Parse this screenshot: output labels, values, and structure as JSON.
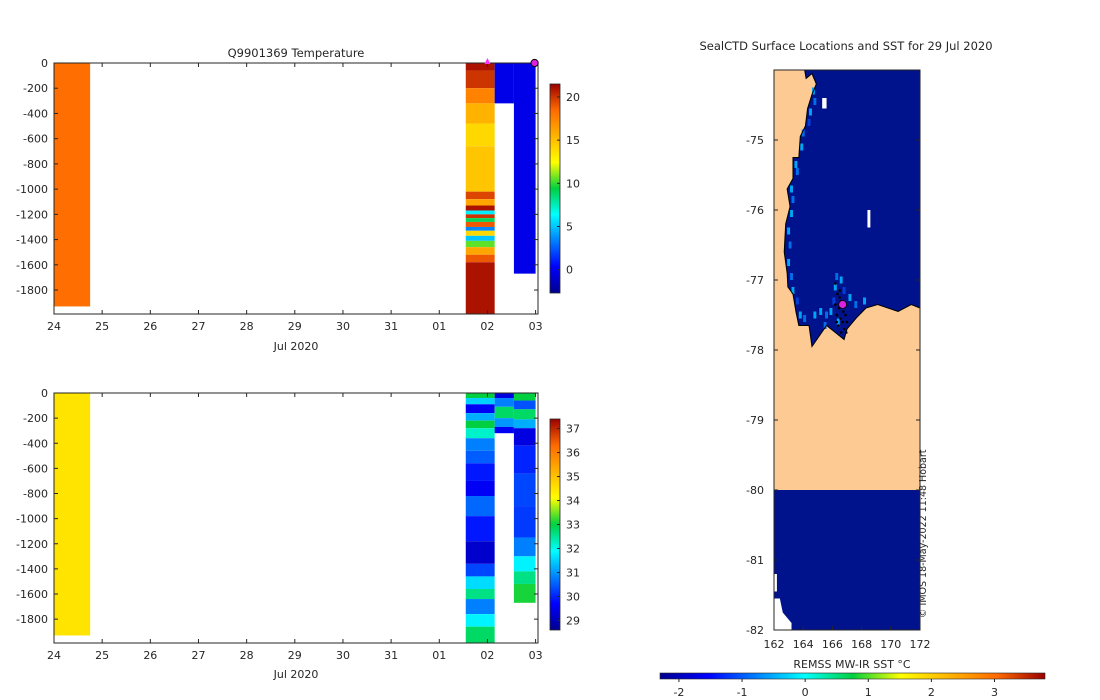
{
  "chart_data": [
    {
      "type": "heatmap",
      "title": "Q9901369  Temperature",
      "xlabel": "Jul 2020",
      "ylabel": "",
      "x_tick_labels": [
        "24",
        "25",
        "26",
        "27",
        "28",
        "29",
        "30",
        "31",
        "01",
        "02",
        "03"
      ],
      "y_tick_labels": [
        "0",
        "-200",
        "-400",
        "-600",
        "-800",
        "-1000",
        "-1200",
        "-1400",
        "-1600",
        "-1800"
      ],
      "xlim": [
        24,
        34.05
      ],
      "ylim": [
        -1990,
        0
      ],
      "colorbar": {
        "ticks": [
          "0",
          "5",
          "10",
          "15",
          "20"
        ],
        "range": [
          -2.7,
          21.5
        ]
      },
      "marker": {
        "x": 34.0,
        "y": 0,
        "shape": "circle",
        "color": "#e020e0"
      },
      "top_marker": {
        "x": 33.0,
        "shape": "triangle",
        "color": "#ff33ff"
      },
      "profiles": [
        {
          "x0": 24.0,
          "x1": 24.75,
          "max_depth": -1930,
          "value_range": "constant",
          "layers": [
            {
              "depth_top": 0,
              "depth_bottom": -1930,
              "value": 18.3
            }
          ]
        },
        {
          "x0": 32.55,
          "x1": 33.15,
          "max_depth": -1990,
          "layers": [
            {
              "depth_top": 0,
              "depth_bottom": -60,
              "value": 21.0
            },
            {
              "depth_top": -60,
              "depth_bottom": -200,
              "value": 20.0
            },
            {
              "depth_top": -200,
              "depth_bottom": -320,
              "value": 17.5
            },
            {
              "depth_top": -320,
              "depth_bottom": -480,
              "value": 15.5
            },
            {
              "depth_top": -480,
              "depth_bottom": -660,
              "value": 14.0
            },
            {
              "depth_top": -660,
              "depth_bottom": -1020,
              "value": 14.8
            },
            {
              "depth_top": -1020,
              "depth_bottom": -1080,
              "value": 19.5
            },
            {
              "depth_top": -1080,
              "depth_bottom": -1130,
              "value": 16.0
            },
            {
              "depth_top": -1130,
              "depth_bottom": -1170,
              "value": 21.0
            },
            {
              "depth_top": -1170,
              "depth_bottom": -1200,
              "value": 6.0
            },
            {
              "depth_top": -1200,
              "depth_bottom": -1230,
              "value": 20.0
            },
            {
              "depth_top": -1230,
              "depth_bottom": -1260,
              "value": 9.0
            },
            {
              "depth_top": -1260,
              "depth_bottom": -1300,
              "value": 19.0
            },
            {
              "depth_top": -1300,
              "depth_bottom": -1330,
              "value": 3.5
            },
            {
              "depth_top": -1330,
              "depth_bottom": -1370,
              "value": 14.0
            },
            {
              "depth_top": -1370,
              "depth_bottom": -1410,
              "value": 5.0
            },
            {
              "depth_top": -1410,
              "depth_bottom": -1460,
              "value": 10.5
            },
            {
              "depth_top": -1460,
              "depth_bottom": -1520,
              "value": 16.0
            },
            {
              "depth_top": -1520,
              "depth_bottom": -1580,
              "value": 19.0
            },
            {
              "depth_top": -1580,
              "depth_bottom": -1990,
              "value": 21.0
            }
          ]
        },
        {
          "x0": 33.15,
          "x1": 33.55,
          "max_depth": -320,
          "layers": [
            {
              "depth_top": 0,
              "depth_bottom": -320,
              "value": -0.3
            }
          ]
        },
        {
          "x0": 33.55,
          "x1": 34.0,
          "max_depth": -1670,
          "layers": [
            {
              "depth_top": 0,
              "depth_bottom": -1670,
              "value": -0.3
            }
          ]
        }
      ]
    },
    {
      "type": "heatmap",
      "title": "",
      "xlabel": "Jul 2020",
      "ylabel": "",
      "x_tick_labels": [
        "24",
        "25",
        "26",
        "27",
        "28",
        "29",
        "30",
        "31",
        "01",
        "02",
        "03"
      ],
      "y_tick_labels": [
        "0",
        "-200",
        "-400",
        "-600",
        "-800",
        "-1000",
        "-1200",
        "-1400",
        "-1600",
        "-1800"
      ],
      "xlim": [
        24,
        34.05
      ],
      "ylim": [
        -1990,
        0
      ],
      "colorbar": {
        "ticks": [
          "29",
          "30",
          "31",
          "32",
          "33",
          "34",
          "35",
          "36",
          "37"
        ],
        "range": [
          28.6,
          37.4
        ]
      },
      "profiles": [
        {
          "x0": 24.0,
          "x1": 24.75,
          "max_depth": -1930,
          "layers": [
            {
              "depth_top": 0,
              "depth_bottom": -1930,
              "value": 34.5
            }
          ]
        },
        {
          "x0": 32.55,
          "x1": 33.15,
          "max_depth": -1990,
          "layers": [
            {
              "depth_top": 0,
              "depth_bottom": -40,
              "value": 33.0
            },
            {
              "depth_top": -40,
              "depth_bottom": -90,
              "value": 31.5
            },
            {
              "depth_top": -90,
              "depth_bottom": -160,
              "value": 29.6
            },
            {
              "depth_top": -160,
              "depth_bottom": -220,
              "value": 31.2
            },
            {
              "depth_top": -220,
              "depth_bottom": -280,
              "value": 33.0
            },
            {
              "depth_top": -280,
              "depth_bottom": -360,
              "value": 32.2
            },
            {
              "depth_top": -360,
              "depth_bottom": -460,
              "value": 30.8
            },
            {
              "depth_top": -460,
              "depth_bottom": -560,
              "value": 30.5
            },
            {
              "depth_top": -560,
              "depth_bottom": -700,
              "value": 29.9
            },
            {
              "depth_top": -700,
              "depth_bottom": -820,
              "value": 29.6
            },
            {
              "depth_top": -820,
              "depth_bottom": -980,
              "value": 30.6
            },
            {
              "depth_top": -980,
              "depth_bottom": -1180,
              "value": 29.9
            },
            {
              "depth_top": -1180,
              "depth_bottom": -1360,
              "value": 29.2
            },
            {
              "depth_top": -1360,
              "depth_bottom": -1460,
              "value": 30.3
            },
            {
              "depth_top": -1460,
              "depth_bottom": -1560,
              "value": 31.6
            },
            {
              "depth_top": -1560,
              "depth_bottom": -1640,
              "value": 32.6
            },
            {
              "depth_top": -1640,
              "depth_bottom": -1760,
              "value": 30.8
            },
            {
              "depth_top": -1760,
              "depth_bottom": -1860,
              "value": 31.8
            },
            {
              "depth_top": -1860,
              "depth_bottom": -1990,
              "value": 32.8
            }
          ]
        },
        {
          "x0": 33.15,
          "x1": 33.55,
          "max_depth": -320,
          "layers": [
            {
              "depth_top": 0,
              "depth_bottom": -40,
              "value": 29.4
            },
            {
              "depth_top": -40,
              "depth_bottom": -110,
              "value": 30.8
            },
            {
              "depth_top": -110,
              "depth_bottom": -200,
              "value": 32.8
            },
            {
              "depth_top": -200,
              "depth_bottom": -270,
              "value": 31.0
            },
            {
              "depth_top": -270,
              "depth_bottom": -320,
              "value": 29.6
            }
          ]
        },
        {
          "x0": 33.55,
          "x1": 34.0,
          "max_depth": -1670,
          "layers": [
            {
              "depth_top": 0,
              "depth_bottom": -60,
              "value": 33.0
            },
            {
              "depth_top": -60,
              "depth_bottom": -130,
              "value": 30.4
            },
            {
              "depth_top": -130,
              "depth_bottom": -210,
              "value": 32.8
            },
            {
              "depth_top": -210,
              "depth_bottom": -280,
              "value": 31.2
            },
            {
              "depth_top": -280,
              "depth_bottom": -420,
              "value": 29.4
            },
            {
              "depth_top": -420,
              "depth_bottom": -640,
              "value": 30.0
            },
            {
              "depth_top": -640,
              "depth_bottom": -900,
              "value": 30.3
            },
            {
              "depth_top": -900,
              "depth_bottom": -1150,
              "value": 30.2
            },
            {
              "depth_top": -1150,
              "depth_bottom": -1300,
              "value": 30.8
            },
            {
              "depth_top": -1300,
              "depth_bottom": -1420,
              "value": 31.8
            },
            {
              "depth_top": -1420,
              "depth_bottom": -1520,
              "value": 32.6
            },
            {
              "depth_top": -1520,
              "depth_bottom": -1670,
              "value": 33.1
            }
          ]
        }
      ]
    },
    {
      "type": "heatmap",
      "subtype": "map",
      "title": "SealCTD Surface Locations and SST for 29 Jul 2020",
      "xlabel": "",
      "ylabel": "",
      "x_tick_labels": [
        "162",
        "164",
        "166",
        "168",
        "170",
        "172"
      ],
      "y_tick_labels": [
        "-75",
        "-76",
        "-77",
        "-78",
        "-79",
        "-80",
        "-81",
        "-82"
      ],
      "xlim": [
        162,
        172
      ],
      "ylim": [
        -82,
        -74.0
      ],
      "colorbar": {
        "label": "REMSS MW-IR SST °C",
        "ticks": [
          "-2",
          "-1",
          "0",
          "1",
          "2",
          "3"
        ],
        "range": [
          -2.3,
          3.8
        ]
      },
      "land_color": "#fdca94",
      "ocean_color": "#00128c",
      "coastal_colors": [
        "#00a6f5",
        "#006fe8",
        "#0040d8"
      ],
      "current_location": {
        "lon": 166.7,
        "lat": -77.35,
        "color": "#e020e0"
      },
      "watermark": "© IMOS 18-May-2022 11:48 Hobart"
    }
  ]
}
